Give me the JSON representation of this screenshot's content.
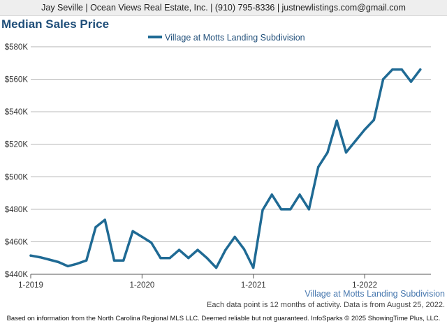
{
  "header": {
    "contact": "Jay Seville | Ocean Views Real Estate, Inc. | (910) 795-8336 | justnewlistings.com@gmail.com"
  },
  "subject_label": "Village at Motts Landing Subdivision",
  "data_note": "Each data point is 12 months of activity. Data is from August 25, 2022.",
  "footer": "Based on information from the North Carolina Regional MLS LLC. Deemed reliable but not guaranteed. InfoSparks © 2025 ShowingTime Plus, LLC.",
  "colors": {
    "series": "#1f6a94",
    "title": "#1f4e79",
    "grid": "#b3b3b3"
  },
  "chart_data": {
    "type": "line",
    "title": "Median Sales Price",
    "xlabel": "",
    "ylabel": "",
    "legend_position": "top-center",
    "grid": true,
    "xlim": [
      "2019-01",
      "2022-07"
    ],
    "ylim": [
      440000,
      580000
    ],
    "y_ticks": [
      {
        "value": 440000,
        "label": "$440K"
      },
      {
        "value": 460000,
        "label": "$460K"
      },
      {
        "value": 480000,
        "label": "$480K"
      },
      {
        "value": 500000,
        "label": "$500K"
      },
      {
        "value": 520000,
        "label": "$520K"
      },
      {
        "value": 540000,
        "label": "$540K"
      },
      {
        "value": 560000,
        "label": "$560K"
      },
      {
        "value": 580000,
        "label": "$580K"
      }
    ],
    "x_ticks": [
      {
        "value": "2019-01",
        "label": "1-2019"
      },
      {
        "value": "2020-01",
        "label": "1-2020"
      },
      {
        "value": "2021-01",
        "label": "1-2021"
      },
      {
        "value": "2022-01",
        "label": "1-2022"
      }
    ],
    "series": [
      {
        "name": "Village at Motts Landing Subdivision",
        "x": [
          "2019-01",
          "2019-02",
          "2019-03",
          "2019-04",
          "2019-05",
          "2019-06",
          "2019-07",
          "2019-08",
          "2019-09",
          "2019-10",
          "2019-11",
          "2019-12",
          "2020-01",
          "2020-02",
          "2020-03",
          "2020-04",
          "2020-05",
          "2020-06",
          "2020-07",
          "2020-08",
          "2020-09",
          "2020-10",
          "2020-11",
          "2020-12",
          "2021-01",
          "2021-02",
          "2021-03",
          "2021-04",
          "2021-05",
          "2021-06",
          "2021-07",
          "2021-08",
          "2021-09",
          "2021-10",
          "2021-11",
          "2021-12",
          "2022-01",
          "2022-02",
          "2022-03",
          "2022-04",
          "2022-05",
          "2022-06",
          "2022-07"
        ],
        "y": [
          451500,
          450500,
          449000,
          447500,
          445000,
          446500,
          448500,
          469000,
          473500,
          448500,
          448500,
          466500,
          463000,
          459500,
          450000,
          450000,
          455000,
          450000,
          455000,
          450000,
          444000,
          455000,
          463000,
          455500,
          444000,
          479500,
          489000,
          480000,
          480000,
          489000,
          480000,
          506000,
          515000,
          534500,
          515000,
          522000,
          529000,
          535000,
          560000,
          566000,
          566000,
          558500,
          566000
        ]
      }
    ]
  }
}
